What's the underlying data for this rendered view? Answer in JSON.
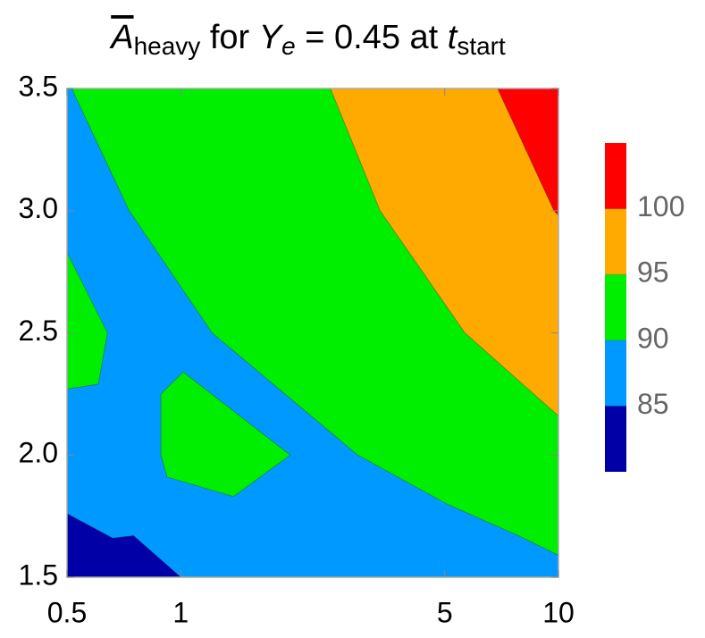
{
  "chart_data": {
    "type": "contour",
    "title": [
      "A",
      "heavy",
      " for ",
      "Y",
      "e",
      " = 0.45 at ",
      "t",
      "start"
    ],
    "xlim": [
      0.5,
      10
    ],
    "xscale": "log",
    "xticks": [
      0.5,
      1,
      5,
      10
    ],
    "ylim": [
      1.5,
      3.5
    ],
    "yticks": [
      1.5,
      {
        "value": 2.0,
        "label": "2.0"
      },
      2.5,
      {
        "value": 3.0,
        "label": "3.0"
      },
      3.5
    ],
    "band_colors": [
      "#0000a6",
      "#0099ff",
      "#00ee00",
      "#ffaa00",
      "#ff0000"
    ],
    "fill_band": 1,
    "regions": [
      {
        "band": 2,
        "x": [
          0.514,
          0.73,
          1.21,
          2.94,
          5.06,
          7.83,
          10,
          10
        ],
        "y": [
          3.5,
          3.0,
          2.5,
          2.0,
          1.8,
          1.67,
          1.59,
          3.5
        ]
      },
      {
        "band": 3,
        "x": [
          2.49,
          3.37,
          5.65,
          10,
          10
        ],
        "y": [
          3.5,
          3.0,
          2.5,
          2.16,
          3.5
        ]
      },
      {
        "band": 4,
        "x": [
          6.9,
          9.73,
          10,
          10
        ],
        "y": [
          3.5,
          3.0,
          2.98,
          3.5
        ]
      },
      {
        "band": 2,
        "x": [
          0.5,
          0.64,
          0.605,
          0.5
        ],
        "y": [
          2.83,
          2.5,
          2.29,
          2.27
        ]
      },
      {
        "band": 2,
        "x": [
          0.886,
          1.015,
          1.95,
          1.38,
          0.92,
          0.886
        ],
        "y": [
          2.25,
          2.34,
          2.0,
          1.83,
          1.91,
          2.0
        ]
      },
      {
        "band": 0,
        "x": [
          0.5,
          0.66,
          0.75,
          1.0,
          0.5
        ],
        "y": [
          1.76,
          1.66,
          1.67,
          1.5,
          1.5
        ]
      }
    ],
    "clim": [
      80,
      105
    ],
    "cticks": [
      85,
      90,
      95,
      100
    ]
  }
}
